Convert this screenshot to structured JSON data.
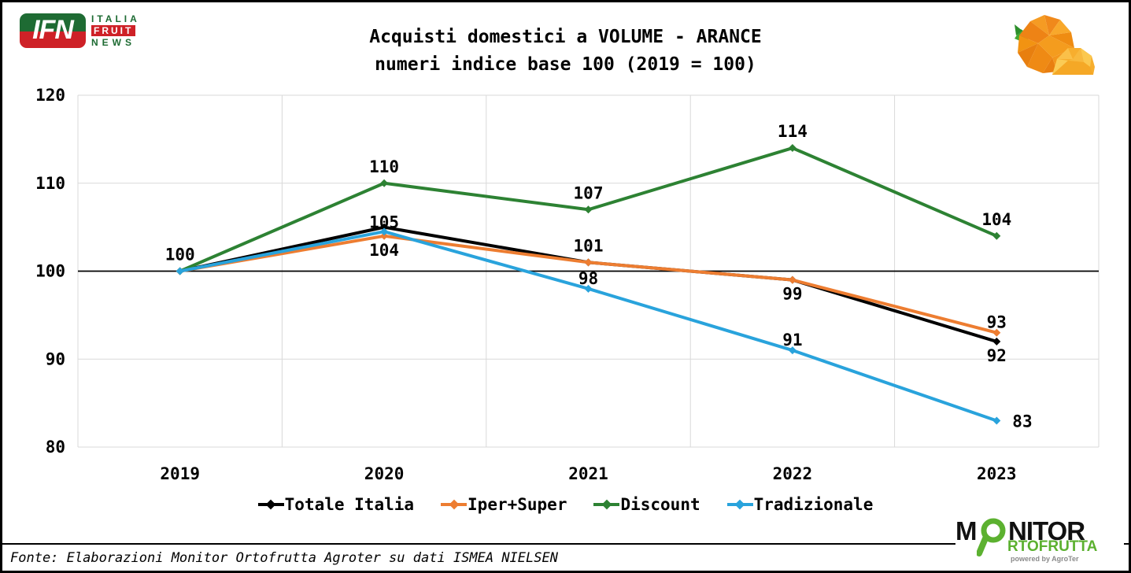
{
  "header": {
    "ifn_logo": {
      "monogram": "IFN",
      "line1": "ITALIA",
      "line2": "FRUIT",
      "line3": "NEWS"
    },
    "title_line1": "Acquisti domestici a VOLUME - ARANCE",
    "title_line2": "numeri indice base 100 (2019 = 100)"
  },
  "chart_data": {
    "type": "line",
    "title": "Acquisti domestici a VOLUME - ARANCE",
    "subtitle": "numeri indice base 100 (2019 = 100)",
    "categories": [
      "2019",
      "2020",
      "2021",
      "2022",
      "2023"
    ],
    "series": [
      {
        "name": "Totale Italia",
        "color": "#000000",
        "values": [
          100,
          105,
          101,
          99,
          92
        ]
      },
      {
        "name": "Iper+Super",
        "color": "#ED7D31",
        "values": [
          100,
          104,
          101,
          99,
          93
        ]
      },
      {
        "name": "Discount",
        "color": "#2D8233",
        "values": [
          100,
          110,
          107,
          114,
          104
        ]
      },
      {
        "name": "Tradizionale",
        "color": "#29A3DC",
        "values": [
          100,
          104.5,
          98,
          91,
          83
        ]
      }
    ],
    "ylim": [
      80,
      120
    ],
    "yticks": [
      80,
      90,
      100,
      110,
      120
    ],
    "baseline": 100,
    "grid": true,
    "gridline_color": "#D9D9D9",
    "legend_position": "bottom",
    "point_labels": [
      {
        "series": 0,
        "point": 0,
        "text": "100",
        "placement": "above"
      },
      {
        "series": 0,
        "point": 1,
        "text": "105",
        "placement": "over"
      },
      {
        "series": 1,
        "point": 1,
        "text": "104",
        "placement": "below"
      },
      {
        "series": 2,
        "point": 1,
        "text": "110",
        "placement": "above"
      },
      {
        "series": 0,
        "point": 2,
        "text": "101",
        "placement": "above"
      },
      {
        "series": 2,
        "point": 2,
        "text": "107",
        "placement": "above"
      },
      {
        "series": 3,
        "point": 2,
        "text": "98",
        "placement": "above-close"
      },
      {
        "series": 0,
        "point": 3,
        "text": "99",
        "placement": "below"
      },
      {
        "series": 2,
        "point": 3,
        "text": "114",
        "placement": "above"
      },
      {
        "series": 3,
        "point": 3,
        "text": "91",
        "placement": "above-close"
      },
      {
        "series": 2,
        "point": 4,
        "text": "104",
        "placement": "above"
      },
      {
        "series": 1,
        "point": 4,
        "text": "93",
        "placement": "above-close"
      },
      {
        "series": 0,
        "point": 4,
        "text": "92",
        "placement": "below"
      },
      {
        "series": 3,
        "point": 4,
        "text": "83",
        "placement": "right"
      }
    ]
  },
  "footer": {
    "source": "Fonte: Elaborazioni Monitor Ortofrutta Agroter su dati ISMEA NIELSEN"
  },
  "monitor_logo": {
    "part1": "M",
    "part2": "NITOR",
    "line2": "RTOFRUTTA",
    "powered": "powered by AgroTer",
    "accent_color": "#5CB130"
  },
  "icons": {
    "orange_fruit": "low-poly-orange-icon",
    "magnifier": "magnifier-icon"
  }
}
